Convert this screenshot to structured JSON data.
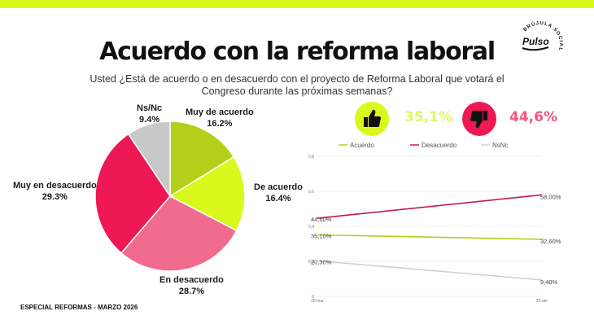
{
  "title": "Acuerdo con la reforma laboral",
  "question": "Usted ¿Está de acuerdo o en desacuerdo con el proyecto de Reforma Laboral que votará el Congreso durante las próximas semanas?",
  "footer": "ESPECIAL REFORMAS - MARZO 2026",
  "logo": {
    "main": "Pulso",
    "arc": "BRÚJULA SOCIAL"
  },
  "kpis": {
    "agree": {
      "value": "35,1%",
      "icon": "thumbs-up-icon",
      "color": "#d9f91c",
      "text_color": "#e2f56a"
    },
    "disagree": {
      "value": "44,6%",
      "icon": "thumbs-down-icon",
      "color": "#ee1855",
      "text_color": "#f5567e"
    }
  },
  "colors": {
    "dark_green": "#b6cf1a",
    "lime": "#d9f91c",
    "pink": "#f06b8e",
    "magenta": "#ee1855",
    "grey": "#c8c8c8"
  },
  "chart_data": [
    {
      "type": "pie",
      "slices": [
        {
          "name": "Muy de acuerdo",
          "value": 16.2,
          "label": "16.2%",
          "color": "#b6cf1a"
        },
        {
          "name": "De acuerdo",
          "value": 16.4,
          "label": "16.4%",
          "color": "#d9f91c"
        },
        {
          "name": "En desacuerdo",
          "value": 28.7,
          "label": "28.7%",
          "color": "#f06b8e"
        },
        {
          "name": "Muy en desacuerdo",
          "value": 29.3,
          "label": "29.3%",
          "color": "#ee1855"
        },
        {
          "name": "Ns/Nc",
          "value": 9.4,
          "label": "9.4%",
          "color": "#c8c8c8"
        }
      ]
    },
    {
      "type": "line",
      "x": [
        "26-mar",
        "26-abr"
      ],
      "ylim": [
        0,
        0.8
      ],
      "yticks": [
        "0",
        "0,2",
        "0,4",
        "0,6",
        "0,8"
      ],
      "yticks_values": [
        0,
        0.2,
        0.4,
        0.6,
        0.8
      ],
      "legend": "top",
      "series": [
        {
          "name": "Acuerdo",
          "values": [
            0.351,
            0.326
          ],
          "labels": [
            "35,10%",
            "32,60%"
          ],
          "color": "#b6cf1a"
        },
        {
          "name": "Desacuerdo",
          "values": [
            0.446,
            0.58
          ],
          "labels": [
            "44,60%",
            "58,00%"
          ],
          "color": "#c2185b"
        },
        {
          "name": "NsNc",
          "values": [
            0.203,
            0.094
          ],
          "labels": [
            "20,30%",
            "9,40%"
          ],
          "color": "#d0d0d0"
        }
      ]
    }
  ]
}
